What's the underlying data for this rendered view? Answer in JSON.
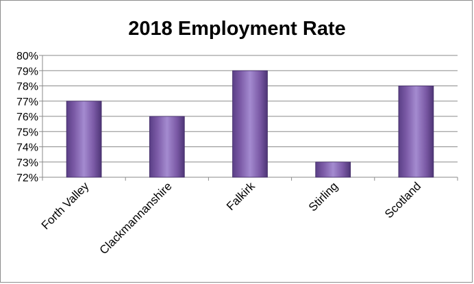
{
  "chart_data": {
    "type": "bar",
    "title": "2018  Employment Rate",
    "categories": [
      "Forth Valley",
      "Clackmannanshire",
      "Falkirk",
      "Stirling",
      "Scotland"
    ],
    "series": [
      {
        "values": [
          77,
          76,
          79,
          73,
          78
        ]
      }
    ],
    "value_unit": "%",
    "ylim": [
      72,
      80
    ],
    "yticks": [
      "72%",
      "73%",
      "74%",
      "75%",
      "76%",
      "77%",
      "78%",
      "79%",
      "80%"
    ],
    "grid": true,
    "legend": "none",
    "bar_color": "#7b5aa6"
  }
}
